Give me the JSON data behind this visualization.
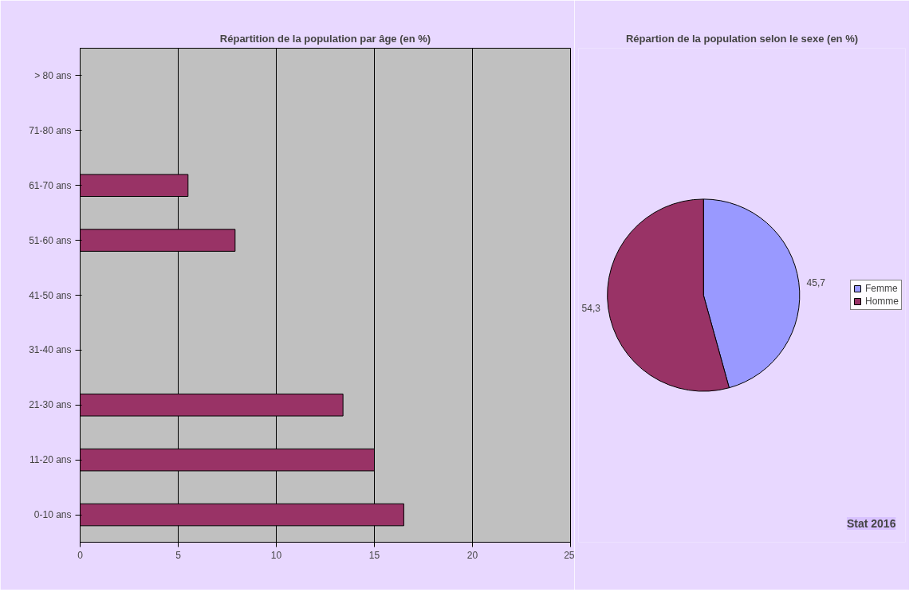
{
  "chart_data": [
    {
      "type": "bar",
      "orientation": "horizontal",
      "title": "Répartition de la population par âge (en %)",
      "categories": [
        "> 80 ans",
        "71-80 ans",
        "61-70 ans",
        "51-60 ans",
        "41-50 ans",
        "31-40 ans",
        "21-30 ans",
        "11-20 ans",
        "0-10 ans"
      ],
      "values": [
        null,
        null,
        5.5,
        7.9,
        null,
        null,
        13.4,
        15.0,
        16.5
      ],
      "color": "#993366",
      "xlim": [
        0,
        25
      ],
      "xticks": [
        0,
        5,
        10,
        15,
        20,
        25
      ],
      "grid": "x"
    },
    {
      "type": "pie",
      "title": "Répartion de la population selon le sexe (en %)",
      "categories": [
        "Femme",
        "Homme"
      ],
      "values": [
        45.7,
        54.3
      ],
      "colors": [
        "#9999ff",
        "#993366"
      ],
      "value_labels": [
        "45,7",
        "54,3"
      ],
      "legend": "right",
      "annotations": [
        "Stat 2016"
      ]
    }
  ]
}
